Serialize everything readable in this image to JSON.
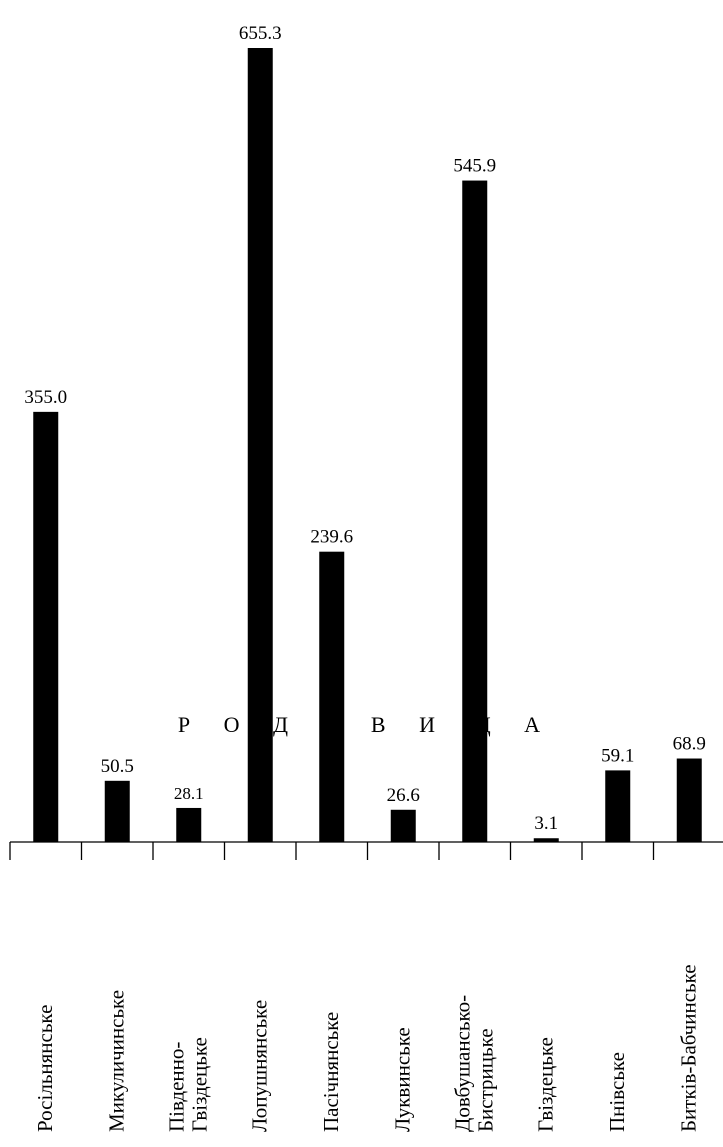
{
  "chart_data": {
    "type": "bar",
    "xlabel": "Р О Д О В И Щ А",
    "categories": [
      "Росільнянське",
      "Микуличинське",
      "Південно-\nГвіздецьке",
      "Лопушнянське",
      "Пасічнянське",
      "Луквинське",
      "Довбушансько-\nБистрицьке",
      "Гвіздецьке",
      "Пнівське",
      "Битків-Бабчинське"
    ],
    "values": [
      355.0,
      50.5,
      28.1,
      655.3,
      239.6,
      26.6,
      545.9,
      3.1,
      59.1,
      68.9
    ],
    "data_labels": [
      "355.0",
      "50.5",
      "28.1",
      "655.3",
      "239.6",
      "26.6",
      "545.9",
      "3.1",
      "59.1",
      "68.9"
    ],
    "ylim": [
      0,
      655.3
    ],
    "bar_color": "#000000",
    "grid": false,
    "legend": "none"
  }
}
